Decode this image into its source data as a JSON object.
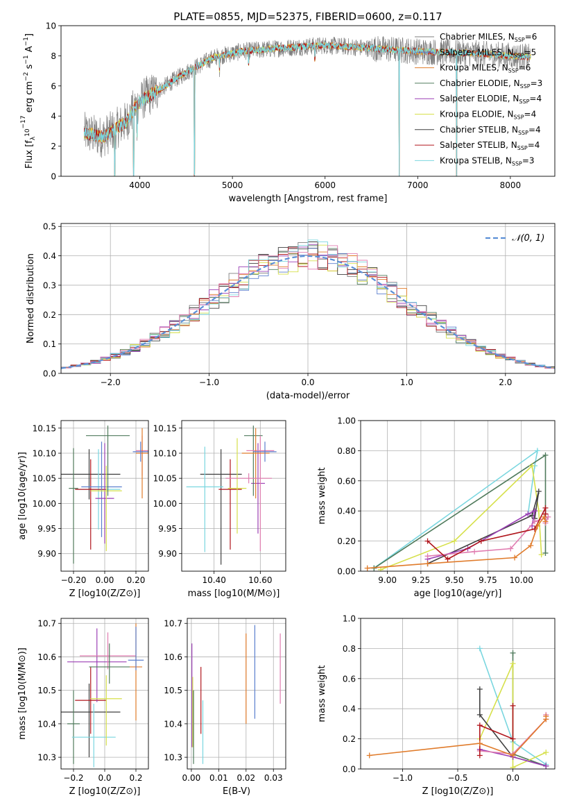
{
  "title": "PLATE=0855, MJD=52375, FIBERID=0600, z=0.117",
  "colors": {
    "chabrier_miles": "#7f7f7f",
    "salpeter_miles": "#5b7fce",
    "kroupa_miles": "#e07b2a",
    "chabrier_elodie": "#4f7a5b",
    "salpeter_elodie": "#9b3fb5",
    "kroupa_elodie": "#d6e04a",
    "chabrier_stelib": "#3f3f3f",
    "salpeter_stelib": "#b0151c",
    "kroupa_stelib": "#79d6df",
    "pink": "#e07cb0",
    "gaussian": "#5b8fd6",
    "grid": "#b0b0b0"
  },
  "chart_data": [
    {
      "id": "spectrum",
      "type": "line",
      "xlabel": "wavelength [Angstrom, rest frame]",
      "ylabel_parts": [
        "Flux [f",
        "λ",
        "10",
        "−17",
        " erg cm",
        "−2",
        " s",
        "−1",
        " A",
        "−1",
        "]"
      ],
      "xlim": [
        3150,
        8480
      ],
      "ylim": [
        0,
        10
      ],
      "xticks": [
        4000,
        5000,
        6000,
        7000,
        8000
      ],
      "yticks": [
        0,
        2,
        4,
        6,
        8,
        10
      ],
      "grid": false,
      "legend_position": "right",
      "legend": [
        {
          "name": "Chabrier MILES",
          "n": "6",
          "sub": "SSP",
          "color_key": "chabrier_miles"
        },
        {
          "name": "Salpeter MILES",
          "n": "5",
          "sub": "SSP",
          "color_key": "salpeter_miles"
        },
        {
          "name": "Kroupa MILES",
          "n": "6",
          "sub": "SSP",
          "color_key": "kroupa_miles"
        },
        {
          "name": "Chabrier ELODIE",
          "n": "3",
          "sub": "SSP",
          "color_key": "chabrier_elodie"
        },
        {
          "name": "Salpeter ELODIE",
          "n": "4",
          "sub": "SSP",
          "color_key": "salpeter_elodie"
        },
        {
          "name": "Kroupa ELODIE",
          "n": "4",
          "sub": "SSP",
          "color_key": "kroupa_elodie"
        },
        {
          "name": "Chabrier STELIB",
          "n": "4",
          "sub": "SSP",
          "color_key": "chabrier_stelib"
        },
        {
          "name": "Salpeter STELIB",
          "n": "4",
          "sub": "SSP",
          "color_key": "salpeter_stelib"
        },
        {
          "name": "Kroupa STELIB",
          "n": "3",
          "sub": "SSP",
          "color_key": "kroupa_stelib"
        }
      ],
      "continuum": [
        [
          3400,
          2.9
        ],
        [
          3600,
          2.6
        ],
        [
          3700,
          3.0
        ],
        [
          3850,
          3.6
        ],
        [
          3950,
          4.6
        ],
        [
          4050,
          5.2
        ],
        [
          4250,
          5.9
        ],
        [
          4500,
          6.9
        ],
        [
          4800,
          7.9
        ],
        [
          5100,
          8.3
        ],
        [
          5500,
          8.5
        ],
        [
          6000,
          8.7
        ],
        [
          6500,
          8.5
        ],
        [
          7000,
          8.3
        ],
        [
          7500,
          8.2
        ],
        [
          8000,
          8.0
        ],
        [
          8220,
          7.9
        ]
      ],
      "absorption_lines": [
        [
          4590,
          0
        ],
        [
          4860,
          7.0
        ],
        [
          5175,
          7.4
        ],
        [
          5890,
          7.8
        ],
        [
          6800,
          0
        ],
        [
          7420,
          0
        ],
        [
          3934,
          0
        ],
        [
          3969,
          3.0
        ],
        [
          3730,
          0
        ]
      ]
    },
    {
      "id": "residuals",
      "type": "step",
      "xlabel": "(data-model)/error",
      "ylabel": "Normed distribution",
      "xlim": [
        -2.5,
        2.5
      ],
      "ylim": [
        0,
        0.51
      ],
      "xticks": [
        -2,
        -1,
        0,
        1,
        2
      ],
      "yticks": [
        0.0,
        0.1,
        0.2,
        0.3,
        0.4,
        0.5
      ],
      "grid": true,
      "legend_position": "top-right",
      "legend": [
        {
          "name": "𝒩(0, 1)",
          "color_key": "gaussian",
          "dashed": true
        }
      ],
      "bin_width": 0.1,
      "gaussian": {
        "mu": 0,
        "sigma": 1
      }
    },
    {
      "id": "age_vs_Z",
      "type": "errorbar",
      "xlabel": "Z [log10(Z/Z⊙)]",
      "ylabel": "age  [log10(age/yr)]",
      "xlim": [
        -0.28,
        0.28
      ],
      "ylim": [
        9.865,
        10.165
      ],
      "xticks": [
        -0.2,
        0.0,
        0.2
      ],
      "yticks": [
        9.9,
        9.95,
        10.0,
        10.05,
        10.1,
        10.15
      ],
      "grid": true,
      "points": [
        {
          "x": -0.1,
          "xerr": 0.2,
          "y": 10.058,
          "yerr": [
            0.05,
            0.05
          ],
          "color_key": "chabrier_stelib"
        },
        {
          "x": -0.2,
          "xerr": 0.03,
          "y": 10.03,
          "yerr": [
            0.15,
            0.08
          ],
          "color_key": "chabrier_elodie"
        },
        {
          "x": -0.04,
          "xerr": 0.14,
          "y": 10.028,
          "yerr": [
            0.08,
            0.08
          ],
          "color_key": "kroupa_stelib"
        },
        {
          "x": -0.09,
          "xerr": 0.1,
          "y": 10.028,
          "yerr": [
            0.12,
            0.06
          ],
          "color_key": "salpeter_stelib"
        },
        {
          "x": -0.02,
          "xerr": 0.13,
          "y": 10.033,
          "yerr": [
            0.1,
            0.09
          ],
          "color_key": "salpeter_miles"
        },
        {
          "x": 0.0,
          "xerr": 0.06,
          "y": 10.01,
          "yerr": [
            0.09,
            0.11
          ],
          "color_key": "salpeter_elodie"
        },
        {
          "x": 0.01,
          "xerr": 0.1,
          "y": 10.025,
          "yerr": [
            0.12,
            0.05
          ],
          "color_key": "kroupa_elodie"
        },
        {
          "x": 0.02,
          "xerr": 0.14,
          "y": 10.135,
          "yerr": [
            0.12,
            0.02
          ],
          "color_key": "chabrier_elodie"
        },
        {
          "x": 0.24,
          "xerr": 0.04,
          "y": 10.105,
          "yerr": [
            0.05,
            0.03
          ],
          "color_key": "pink"
        },
        {
          "x": 0.24,
          "xerr": 0.04,
          "y": 10.1,
          "yerr": [
            0.09,
            0.05
          ],
          "color_key": "kroupa_miles"
        },
        {
          "x": 0.23,
          "xerr": 0.05,
          "y": 10.103,
          "yerr": [
            0.02,
            0.02
          ],
          "color_key": "salpeter_miles"
        }
      ]
    },
    {
      "id": "age_vs_mass",
      "type": "errorbar",
      "xlabel": "mass [log10(M/M⊙)]",
      "ylabel": "",
      "xlim": [
        10.26,
        10.71
      ],
      "ylim": [
        9.865,
        10.165
      ],
      "xticks": [
        10.4,
        10.6
      ],
      "yticks": [
        9.9,
        9.95,
        10.0,
        10.05,
        10.1,
        10.15
      ],
      "grid": true,
      "points": [
        {
          "x": 10.43,
          "xerr": 0.09,
          "y": 10.058,
          "yerr": [
            0.18,
            0.05
          ],
          "color_key": "chabrier_stelib"
        },
        {
          "x": 10.36,
          "xerr": 0.08,
          "y": 10.033,
          "yerr": [
            0.13,
            0.08
          ],
          "color_key": "kroupa_stelib"
        },
        {
          "x": 10.47,
          "xerr": 0.05,
          "y": 10.028,
          "yerr": [
            0.12,
            0.06
          ],
          "color_key": "salpeter_stelib"
        },
        {
          "x": 10.5,
          "xerr": 0.04,
          "y": 10.03,
          "yerr": [
            0.09,
            0.1
          ],
          "color_key": "kroupa_elodie"
        },
        {
          "x": 10.59,
          "xerr": 0.03,
          "y": 10.04,
          "yerr": [
            0.1,
            0.08
          ],
          "color_key": "salpeter_elodie"
        },
        {
          "x": 10.57,
          "xerr": 0.04,
          "y": 10.135,
          "yerr": [
            0.12,
            0.02
          ],
          "color_key": "chabrier_elodie"
        },
        {
          "x": 10.6,
          "xerr": 0.06,
          "y": 10.105,
          "yerr": [
            0.2,
            0.03
          ],
          "color_key": "pink"
        },
        {
          "x": 10.58,
          "xerr": 0.06,
          "y": 10.1,
          "yerr": [
            0.09,
            0.05
          ],
          "color_key": "kroupa_miles"
        },
        {
          "x": 10.62,
          "xerr": 0.05,
          "y": 10.103,
          "yerr": [
            0.02,
            0.02
          ],
          "color_key": "salpeter_miles"
        },
        {
          "x": 10.55,
          "xerr": 0.1,
          "y": 10.05,
          "yerr": [
            0.01,
            0.01
          ],
          "color_key": "pink"
        }
      ]
    },
    {
      "id": "weight_vs_age",
      "type": "line",
      "xlabel": "age  [log10(age/yr)]",
      "ylabel": "mass weight",
      "xlim": [
        8.8,
        10.25
      ],
      "ylim": [
        0,
        1
      ],
      "xticks": [
        9.0,
        9.25,
        9.5,
        9.75,
        10.0
      ],
      "yticks": [
        0.0,
        0.2,
        0.4,
        0.6,
        0.8,
        1.0
      ],
      "grid": true,
      "series": [
        {
          "color_key": "kroupa_stelib",
          "x": [
            8.9,
            10.12,
            10.1,
            10.05
          ],
          "y": [
            0.02,
            0.8,
            0.7,
            0.38
          ]
        },
        {
          "color_key": "chabrier_elodie",
          "x": [
            8.9,
            10.18,
            10.18
          ],
          "y": [
            0.02,
            0.77,
            0.12
          ]
        },
        {
          "color_key": "kroupa_elodie",
          "x": [
            8.95,
            9.5,
            10.08,
            10.13,
            10.15
          ],
          "y": [
            0.01,
            0.2,
            0.7,
            0.4,
            0.11
          ]
        },
        {
          "color_key": "chabrier_stelib",
          "x": [
            9.3,
            10.08,
            10.13,
            10.1
          ],
          "y": [
            0.05,
            0.37,
            0.53,
            0.35
          ]
        },
        {
          "color_key": "salpeter_elodie",
          "x": [
            9.3,
            9.6,
            10.05,
            10.1,
            10.08
          ],
          "y": [
            0.08,
            0.15,
            0.38,
            0.4,
            0.3
          ]
        },
        {
          "color_key": "pink",
          "x": [
            9.3,
            9.65,
            9.92,
            10.1,
            10.2,
            10.18
          ],
          "y": [
            0.1,
            0.13,
            0.15,
            0.33,
            0.36,
            0.32
          ]
        },
        {
          "color_key": "salpeter_stelib",
          "x": [
            9.3,
            9.45,
            9.7,
            10.1,
            10.18,
            10.18
          ],
          "y": [
            0.2,
            0.08,
            0.2,
            0.28,
            0.42,
            0.38
          ]
        },
        {
          "color_key": "kroupa_miles",
          "x": [
            8.85,
            9.3,
            9.95,
            10.07,
            10.12,
            10.17,
            10.18
          ],
          "y": [
            0.02,
            0.05,
            0.09,
            0.17,
            0.3,
            0.36,
            0.33
          ]
        }
      ]
    },
    {
      "id": "mass_vs_Z",
      "type": "errorbar",
      "xlabel": "Z [log10(Z/Z⊙)]",
      "ylabel": "mass [log10(M/M⊙)]",
      "xlim": [
        -0.28,
        0.28
      ],
      "ylim": [
        10.265,
        10.715
      ],
      "xticks": [
        -0.2,
        0.0,
        0.2
      ],
      "yticks": [
        10.3,
        10.4,
        10.5,
        10.6,
        10.7
      ],
      "grid": true,
      "points": [
        {
          "x": -0.1,
          "xerr": 0.2,
          "y": 10.435,
          "yerr": [
            0.135,
            0.085
          ],
          "color_key": "chabrier_stelib"
        },
        {
          "x": -0.2,
          "xerr": 0.04,
          "y": 10.4,
          "yerr": [
            0.12,
            0.1
          ],
          "color_key": "chabrier_elodie"
        },
        {
          "x": -0.07,
          "xerr": 0.14,
          "y": 10.36,
          "yerr": [
            0.09,
            0.1
          ],
          "color_key": "kroupa_stelib"
        },
        {
          "x": -0.09,
          "xerr": 0.1,
          "y": 10.47,
          "yerr": [
            0.1,
            0.1
          ],
          "color_key": "salpeter_stelib"
        },
        {
          "x": -0.05,
          "xerr": 0.19,
          "y": 10.585,
          "yerr": [
            0.12,
            0.1
          ],
          "color_key": "salpeter_elodie"
        },
        {
          "x": 0.02,
          "xerr": 0.18,
          "y": 10.603,
          "yerr": [
            0.04,
            0.07
          ],
          "color_key": "pink"
        },
        {
          "x": 0.03,
          "xerr": 0.13,
          "y": 10.57,
          "yerr": [
            0.05,
            0.07
          ],
          "color_key": "chabrier_elodie"
        },
        {
          "x": 0.01,
          "xerr": 0.1,
          "y": 10.475,
          "yerr": [
            0.14,
            0.07
          ],
          "color_key": "kroupa_elodie"
        },
        {
          "x": 0.2,
          "xerr": 0.04,
          "y": 10.57,
          "yerr": [
            0.16,
            0.13
          ],
          "color_key": "kroupa_miles"
        },
        {
          "x": 0.2,
          "xerr": 0.05,
          "y": 10.59,
          "yerr": [
            0.03,
            0.1
          ],
          "color_key": "salpeter_miles"
        }
      ]
    },
    {
      "id": "mass_vs_EBV",
      "type": "errorbar",
      "xlabel": "E(B-V)",
      "ylabel": "",
      "xlim": [
        -0.0015,
        0.0345
      ],
      "ylim": [
        10.265,
        10.715
      ],
      "xticks": [
        0.0,
        0.01,
        0.02,
        0.03
      ],
      "xtick_labels": [
        "0.00",
        "0.01",
        "0.02",
        "0.03"
      ],
      "yticks": [
        10.3,
        10.4,
        10.5,
        10.6,
        10.7
      ],
      "grid": true,
      "points": [
        {
          "x": 0.0002,
          "y": 10.53,
          "yerr": [
            0.2,
            0.11
          ],
          "color_key": "salpeter_elodie"
        },
        {
          "x": 0.0005,
          "y": 10.45,
          "yerr": [
            0.12,
            0.09
          ],
          "color_key": "kroupa_elodie"
        },
        {
          "x": 0.0008,
          "y": 10.4,
          "yerr": [
            0.12,
            0.1
          ],
          "color_key": "chabrier_elodie"
        },
        {
          "x": 0.0035,
          "y": 10.47,
          "yerr": [
            0.1,
            0.1
          ],
          "color_key": "salpeter_stelib"
        },
        {
          "x": 0.0042,
          "y": 10.37,
          "yerr": [
            0.09,
            0.1
          ],
          "color_key": "kroupa_stelib"
        },
        {
          "x": 0.02,
          "y": 10.535,
          "yerr": [
            0.135,
            0.135
          ],
          "color_key": "kroupa_miles"
        },
        {
          "x": 0.0232,
          "y": 10.555,
          "yerr": [
            0.14,
            0.14
          ],
          "color_key": "salpeter_miles"
        },
        {
          "x": 0.0325,
          "y": 10.56,
          "yerr": [
            0.1,
            0.11
          ],
          "color_key": "pink"
        }
      ]
    },
    {
      "id": "weight_vs_Z",
      "type": "line",
      "xlabel": "Z [log10(Z/Z⊙)]",
      "ylabel": "mass weight",
      "xlim": [
        -1.38,
        0.38
      ],
      "ylim": [
        0,
        1
      ],
      "xticks": [
        -1.0,
        -0.5,
        0.0
      ],
      "yticks": [
        0.0,
        0.2,
        0.4,
        0.6,
        0.8,
        1.0
      ],
      "grid": true,
      "series": [
        {
          "color_key": "kroupa_stelib",
          "x": [
            -0.3,
            0.0,
            0.3
          ],
          "y": [
            0.8,
            0.18,
            0.03
          ]
        },
        {
          "color_key": "chabrier_elodie",
          "x": [
            0.0,
            0.0,
            0.3
          ],
          "y": [
            0.77,
            0.1,
            0.02
          ]
        },
        {
          "color_key": "kroupa_elodie",
          "x": [
            -0.3,
            0.0,
            0.0,
            0.3
          ],
          "y": [
            0.2,
            0.7,
            0.01,
            0.11
          ]
        },
        {
          "color_key": "chabrier_stelib",
          "x": [
            -0.3,
            -0.3,
            0.0,
            0.3
          ],
          "y": [
            0.53,
            0.36,
            0.08,
            0.02
          ]
        },
        {
          "color_key": "salpeter_elodie",
          "x": [
            -0.3,
            0.0,
            0.3
          ],
          "y": [
            0.13,
            0.08,
            0.02
          ]
        },
        {
          "color_key": "pink",
          "x": [
            -0.3,
            0.0,
            0.3,
            0.3
          ],
          "y": [
            0.12,
            0.1,
            0.33,
            0.36
          ]
        },
        {
          "color_key": "salpeter_stelib",
          "x": [
            -0.3,
            -0.3,
            0.0,
            0.0
          ],
          "y": [
            0.09,
            0.29,
            0.2,
            0.42
          ]
        },
        {
          "color_key": "kroupa_miles",
          "x": [
            -1.3,
            -0.3,
            0.0,
            0.3,
            0.3
          ],
          "y": [
            0.09,
            0.17,
            0.09,
            0.33,
            0.35
          ]
        }
      ]
    }
  ]
}
